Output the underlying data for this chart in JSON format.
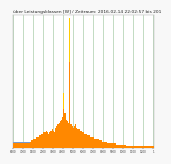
{
  "title": "über Leistungsklassen [W] / Zeitraum: 2016-02-14 22:02:57 bis 201",
  "title_fontsize": 3.2,
  "background_color": "#f8f8f8",
  "plot_bg_color": "#ffffff",
  "grid_color": "#88bb88",
  "bar_color_orange": "#ff8800",
  "bar_color_yellow": "#ffcc00",
  "bar_color_blue": "#7799cc",
  "num_bars": 120,
  "x_tick_labels": [
    "0000",
    "7000",
    "1500",
    "2000",
    "3000",
    "4000",
    "5000",
    "6000",
    "7000",
    "8000",
    "9000",
    "1000",
    "1100",
    "1200",
    "1"
  ],
  "heights_orange": [
    0.03,
    0.03,
    0.03,
    0.03,
    0.03,
    0.03,
    0.03,
    0.03,
    0.03,
    0.03,
    0.03,
    0.03,
    0.03,
    0.03,
    0.03,
    0.04,
    0.05,
    0.06,
    0.06,
    0.06,
    0.07,
    0.07,
    0.08,
    0.08,
    0.09,
    0.09,
    0.1,
    0.1,
    0.11,
    0.1,
    0.09,
    0.1,
    0.11,
    0.12,
    0.11,
    0.1,
    0.13,
    0.14,
    0.15,
    0.16,
    0.17,
    0.18,
    0.2,
    0.25,
    0.22,
    0.18,
    0.17,
    0.16,
    0.55,
    0.15,
    0.14,
    0.13,
    0.14,
    0.15,
    0.13,
    0.12,
    0.12,
    0.11,
    0.11,
    0.1,
    0.1,
    0.09,
    0.09,
    0.08,
    0.08,
    0.08,
    0.07,
    0.07,
    0.07,
    0.06,
    0.06,
    0.06,
    0.06,
    0.05,
    0.05,
    0.05,
    0.04,
    0.04,
    0.04,
    0.04,
    0.03,
    0.03,
    0.03,
    0.03,
    0.03,
    0.03,
    0.03,
    0.03,
    0.02,
    0.02,
    0.02,
    0.02,
    0.02,
    0.02,
    0.02,
    0.02,
    0.01,
    0.01,
    0.01,
    0.01,
    0.01,
    0.01,
    0.01,
    0.01,
    0.01,
    0.01,
    0.01,
    0.01,
    0.01,
    0.01,
    0.01,
    0.01,
    0.01,
    0.01,
    0.01,
    0.01,
    0.01,
    0.01,
    0.01,
    0.01
  ],
  "heights_yellow": [
    0,
    0,
    0,
    0,
    0,
    0,
    0,
    0,
    0,
    0,
    0,
    0,
    0,
    0,
    0,
    0,
    0,
    0,
    0,
    0,
    0,
    0,
    0,
    0,
    0,
    0,
    0,
    0,
    0,
    0,
    0,
    0,
    0,
    0,
    0,
    0,
    0,
    0,
    0,
    0,
    0,
    0,
    0,
    0.1,
    0,
    0,
    0,
    0,
    0.28,
    0,
    0,
    0,
    0,
    0,
    0,
    0,
    0,
    0,
    0,
    0,
    0,
    0,
    0,
    0,
    0,
    0,
    0,
    0,
    0,
    0,
    0,
    0,
    0,
    0,
    0,
    0,
    0,
    0,
    0,
    0,
    0,
    0,
    0,
    0,
    0,
    0,
    0,
    0,
    0,
    0,
    0,
    0,
    0,
    0,
    0,
    0,
    0,
    0,
    0,
    0,
    0,
    0,
    0,
    0,
    0,
    0,
    0,
    0,
    0,
    0,
    0,
    0,
    0,
    0,
    0,
    0,
    0,
    0,
    0,
    0
  ],
  "heights_blue": [
    0.04,
    0.04,
    0.04,
    0.04,
    0.04,
    0.04,
    0.04,
    0.04,
    0.04,
    0.04,
    0.04,
    0.04,
    0.04,
    0.04,
    0.04,
    0.04,
    0.04,
    0.04,
    0.04,
    0.04,
    0,
    0,
    0,
    0,
    0,
    0,
    0,
    0,
    0,
    0,
    0,
    0,
    0,
    0,
    0,
    0,
    0,
    0,
    0,
    0,
    0,
    0,
    0,
    0,
    0,
    0,
    0,
    0,
    0,
    0,
    0,
    0,
    0,
    0,
    0,
    0,
    0,
    0,
    0,
    0,
    0,
    0,
    0,
    0,
    0,
    0,
    0,
    0,
    0,
    0,
    0,
    0,
    0,
    0,
    0,
    0,
    0,
    0,
    0,
    0,
    0,
    0,
    0,
    0,
    0,
    0,
    0,
    0,
    0,
    0,
    0,
    0,
    0,
    0,
    0,
    0,
    0,
    0,
    0,
    0,
    0,
    0,
    0,
    0,
    0,
    0,
    0,
    0,
    0,
    0,
    0,
    0,
    0,
    0,
    0,
    0,
    0,
    0,
    0,
    0
  ],
  "ylim": [
    0,
    0.85
  ]
}
